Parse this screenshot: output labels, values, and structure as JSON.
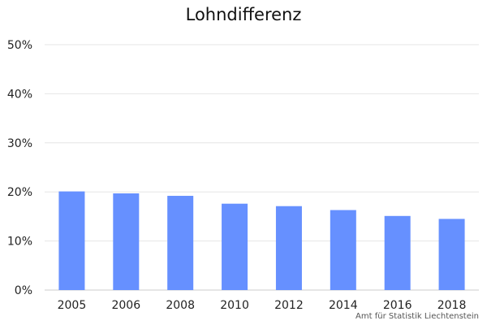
{
  "chart_data": {
    "type": "bar",
    "title": "Lohndifferenz",
    "xlabel": "",
    "ylabel": "",
    "categories": [
      "2005",
      "2006",
      "2008",
      "2010",
      "2012",
      "2014",
      "2016",
      "2018"
    ],
    "values": [
      20.1,
      19.7,
      19.2,
      17.6,
      17.1,
      16.3,
      15.1,
      14.5
    ],
    "ylim": [
      0,
      50
    ],
    "yticks": [
      "0%",
      "10%",
      "20%",
      "30%",
      "40%",
      "50%"
    ],
    "grid": true,
    "legend": "none",
    "bar_color": "#6690ff",
    "source": "Amt für Statistik Liechtenstein"
  }
}
